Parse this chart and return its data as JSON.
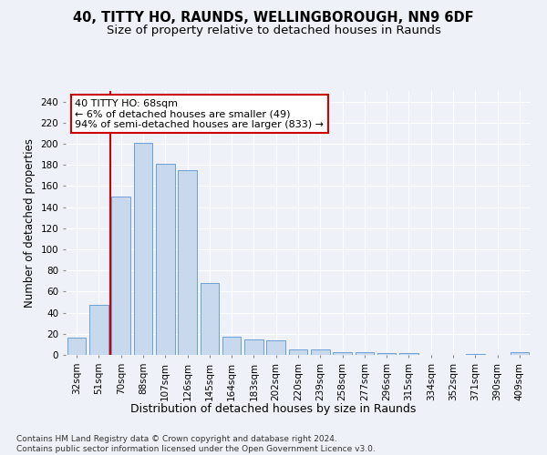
{
  "title": "40, TITTY HO, RAUNDS, WELLINGBOROUGH, NN9 6DF",
  "subtitle": "Size of property relative to detached houses in Raunds",
  "xlabel": "Distribution of detached houses by size in Raunds",
  "ylabel": "Number of detached properties",
  "categories": [
    "32sqm",
    "51sqm",
    "70sqm",
    "88sqm",
    "107sqm",
    "126sqm",
    "145sqm",
    "164sqm",
    "183sqm",
    "202sqm",
    "220sqm",
    "239sqm",
    "258sqm",
    "277sqm",
    "296sqm",
    "315sqm",
    "334sqm",
    "352sqm",
    "371sqm",
    "390sqm",
    "409sqm"
  ],
  "values": [
    16,
    47,
    150,
    201,
    181,
    175,
    68,
    17,
    15,
    14,
    5,
    5,
    3,
    3,
    2,
    2,
    0,
    0,
    1,
    0,
    3
  ],
  "bar_color": "#c8d9ed",
  "bar_edge_color": "#6a9fd8",
  "property_line_bar_index": 2,
  "property_line_color": "#cc0000",
  "annotation_text": "40 TITTY HO: 68sqm\n← 6% of detached houses are smaller (49)\n94% of semi-detached houses are larger (833) →",
  "annotation_box_facecolor": "#ffffff",
  "annotation_box_edgecolor": "#cc0000",
  "ylim": [
    0,
    250
  ],
  "yticks": [
    0,
    20,
    40,
    60,
    80,
    100,
    120,
    140,
    160,
    180,
    200,
    220,
    240
  ],
  "background_color": "#eef2f8",
  "grid_color": "#ffffff",
  "title_fontsize": 10.5,
  "subtitle_fontsize": 9.5,
  "xlabel_fontsize": 9,
  "ylabel_fontsize": 8.5,
  "tick_fontsize": 7.5,
  "annotation_fontsize": 8,
  "footer_fontsize": 6.5,
  "footer_text": "Contains HM Land Registry data © Crown copyright and database right 2024.\nContains public sector information licensed under the Open Government Licence v3.0."
}
